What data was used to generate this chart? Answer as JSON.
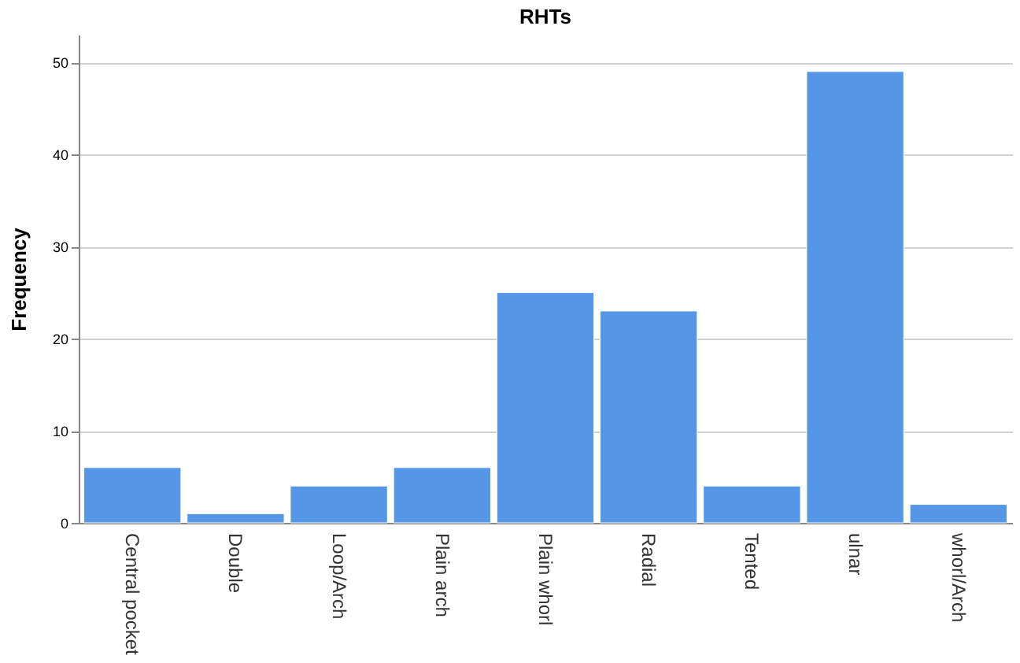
{
  "chart_data": {
    "type": "bar",
    "title": "RHTs",
    "ylabel": "Frequency",
    "categories": [
      "Central pocket",
      "Double",
      "Loop/Arch",
      "Plain arch",
      "Plain whorl",
      "Radial",
      "Tented",
      "ulnar",
      "whorl/Arch"
    ],
    "values": [
      6,
      1,
      4,
      6,
      25,
      23,
      4,
      49,
      2
    ],
    "color": "#5596e6",
    "ylim": [
      0,
      53
    ],
    "yticks": [
      0,
      10,
      20,
      30,
      40,
      50
    ],
    "grid": "y"
  }
}
